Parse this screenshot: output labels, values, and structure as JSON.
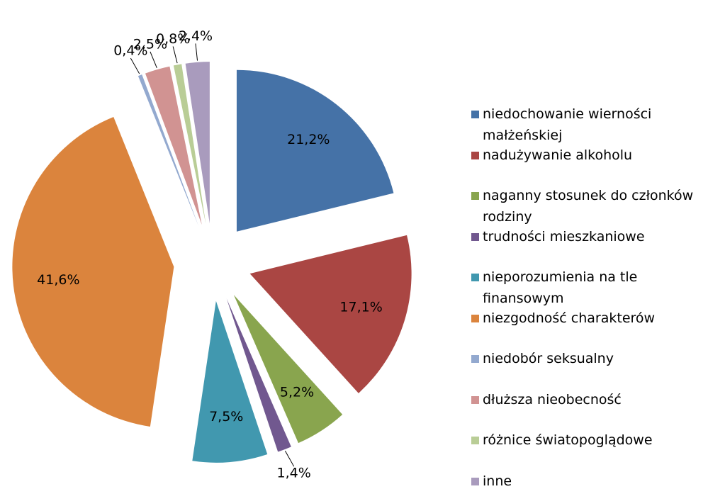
{
  "chart_data": {
    "type": "pie",
    "categories": [
      "niedochowanie wierności małżeńskiej",
      "nadużywanie alkoholu",
      "naganny stosunek do członków rodziny",
      "trudności mieszkaniowe",
      "nieporozumienia na tle finansowym",
      "niezgodność charakterów",
      "niedobór seksualny",
      "dłuższa nieobecność",
      "różnice światopoglądowe",
      "inne"
    ],
    "values": [
      21.2,
      17.1,
      5.2,
      1.4,
      7.5,
      41.6,
      0.4,
      2.5,
      0.8,
      2.4
    ],
    "value_labels": [
      "21,2%",
      "17,1%",
      "5,2%",
      "1,4%",
      "7,5%",
      "41,6%",
      "0,4%",
      "2,5%",
      "0,8%",
      "2,4%"
    ],
    "colors": [
      "#4572A7",
      "#AA4643",
      "#89A54E",
      "#71588F",
      "#4198AF",
      "#DB843D",
      "#93A9CF",
      "#D19392",
      "#B9CD96",
      "#A99BBD"
    ],
    "legend": "right"
  }
}
